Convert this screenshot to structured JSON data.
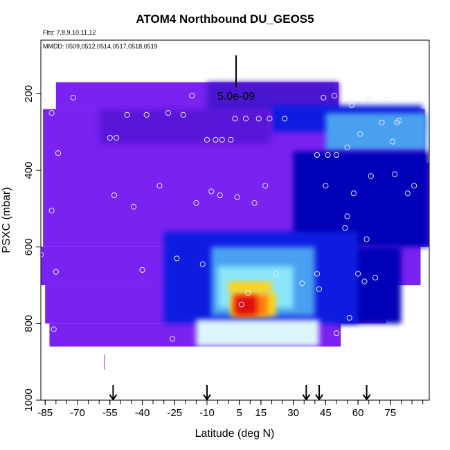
{
  "chart_data": {
    "type": "heatmap",
    "title": "ATOM4 Northbound DU_GEOS5",
    "flights_note": "Flts: 7,8,9,10,11,12",
    "dates_note": "MMDD: 0509,0512,0514,0517,0518,0519",
    "scale_label": "5.0e-09",
    "xlabel": "Latitude (deg N)",
    "ylabel": "PSXC (mbar)",
    "xlim": [
      -87,
      93
    ],
    "ylim": [
      1000,
      60
    ],
    "x_ticks": [
      "-85",
      "-70",
      "-55",
      "-40",
      "-25",
      "-10",
      "5",
      "15",
      "30",
      "45",
      "60",
      "75"
    ],
    "y_ticks": [
      "200",
      "400",
      "600",
      "800",
      "1000"
    ],
    "arrows_lat": [
      -53.5,
      -10,
      36,
      42,
      64
    ],
    "colors": {
      "purple": "#7a22f0",
      "purple_dark": "#5a14d8",
      "blue_violet": "#4a18d0",
      "blue": "#0d1ee0",
      "navy": "#0000b8",
      "light_blue": "#4aa0f0",
      "cyan": "#8ae6f8",
      "pale_cyan": "#dcf6fb",
      "yellow": "#ffd21e",
      "orange": "#ff7a10",
      "red": "#e01010",
      "dark_red": "#a00010"
    },
    "field_regions": [
      {
        "lat_range": [
          -80,
          51
        ],
        "p_range": [
          170,
          240
        ],
        "color": "purple"
      },
      {
        "lat_range": [
          -86,
          91
        ],
        "p_range": [
          240,
          380
        ],
        "color": "purple"
      },
      {
        "lat_range": [
          -86,
          93
        ],
        "p_range": [
          380,
          600
        ],
        "color": "purple"
      },
      {
        "lat_range": [
          -87,
          89
        ],
        "p_range": [
          600,
          700
        ],
        "color": "purple"
      },
      {
        "lat_range": [
          -85,
          73
        ],
        "p_range": [
          700,
          800
        ],
        "color": "purple"
      },
      {
        "lat_range": [
          -83,
          52
        ],
        "p_range": [
          800,
          860
        ],
        "color": "purple"
      },
      {
        "lat_range": [
          -10,
          51
        ],
        "p_range": [
          170,
          250
        ],
        "color": "blue_violet"
      },
      {
        "lat_range": [
          20,
          90
        ],
        "p_range": [
          230,
          300
        ],
        "color": "blue"
      },
      {
        "lat_range": [
          45,
          92
        ],
        "p_range": [
          250,
          350
        ],
        "color": "light_blue"
      },
      {
        "lat_range": [
          30,
          93
        ],
        "p_range": [
          350,
          600
        ],
        "color": "navy"
      },
      {
        "lat_range": [
          50,
          80
        ],
        "p_range": [
          600,
          800
        ],
        "color": "navy"
      },
      {
        "lat_range": [
          -60,
          20
        ],
        "p_range": [
          240,
          330
        ],
        "color": "purple_dark"
      },
      {
        "lat_range": [
          -30,
          60
        ],
        "p_range": [
          560,
          800
        ],
        "color": "blue"
      },
      {
        "lat_range": [
          -8,
          40
        ],
        "p_range": [
          600,
          780
        ],
        "color": "light_blue"
      },
      {
        "lat_range": [
          -5,
          30
        ],
        "p_range": [
          650,
          760
        ],
        "color": "cyan"
      },
      {
        "lat_range": [
          -15,
          42
        ],
        "p_range": [
          790,
          860
        ],
        "color": "pale_cyan"
      },
      {
        "lat_range": [
          0,
          20
        ],
        "p_range": [
          690,
          720
        ],
        "color": "yellow"
      },
      {
        "lat_range": [
          1,
          22
        ],
        "p_range": [
          720,
          780
        ],
        "color": "yellow"
      },
      {
        "lat_range": [
          2,
          18
        ],
        "p_range": [
          725,
          780
        ],
        "color": "orange"
      },
      {
        "lat_range": [
          3,
          13
        ],
        "p_range": [
          728,
          778
        ],
        "color": "red"
      }
    ],
    "points": [
      [
        -86,
        215
      ],
      [
        -82,
        250
      ],
      [
        -79,
        355
      ],
      [
        -82,
        505
      ],
      [
        -87,
        620
      ],
      [
        -80,
        665
      ],
      [
        -81,
        815
      ],
      [
        -72,
        210
      ],
      [
        -55,
        315
      ],
      [
        -53,
        465
      ],
      [
        -52,
        315
      ],
      [
        -47,
        255
      ],
      [
        -44,
        495
      ],
      [
        -40,
        660
      ],
      [
        -38,
        255
      ],
      [
        -32,
        440
      ],
      [
        -28,
        250
      ],
      [
        -26,
        840
      ],
      [
        -24,
        630
      ],
      [
        -21,
        255
      ],
      [
        -17,
        205
      ],
      [
        -15,
        485
      ],
      [
        -12,
        645
      ],
      [
        -10,
        320
      ],
      [
        -8,
        455
      ],
      [
        -6,
        320
      ],
      [
        -3,
        320
      ],
      [
        -4,
        465
      ],
      [
        1,
        320
      ],
      [
        3,
        265
      ],
      [
        4,
        470
      ],
      [
        6,
        750
      ],
      [
        8,
        265
      ],
      [
        9,
        720
      ],
      [
        12,
        485
      ],
      [
        14,
        265
      ],
      [
        17,
        440
      ],
      [
        19,
        265
      ],
      [
        22,
        670
      ],
      [
        26,
        265
      ],
      [
        34,
        695
      ],
      [
        41,
        360
      ],
      [
        41,
        670
      ],
      [
        42,
        710
      ],
      [
        44,
        210
      ],
      [
        45,
        440
      ],
      [
        46,
        360
      ],
      [
        49,
        205
      ],
      [
        50,
        360
      ],
      [
        50,
        825
      ],
      [
        54,
        550
      ],
      [
        55,
        520
      ],
      [
        55,
        340
      ],
      [
        56,
        785
      ],
      [
        57,
        230
      ],
      [
        58,
        460
      ],
      [
        60,
        670
      ],
      [
        61,
        305
      ],
      [
        63,
        690
      ],
      [
        64,
        580
      ],
      [
        65,
        215
      ],
      [
        66,
        415
      ],
      [
        68,
        680
      ],
      [
        71,
        275
      ],
      [
        73,
        215
      ],
      [
        76,
        325
      ],
      [
        77,
        410
      ],
      [
        78,
        275
      ],
      [
        79,
        270
      ],
      [
        83,
        460
      ],
      [
        86,
        440
      ]
    ]
  }
}
